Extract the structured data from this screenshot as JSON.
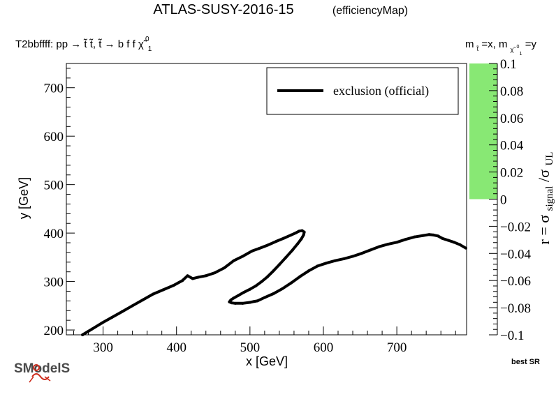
{
  "header": {
    "title": "ATLAS-SUSY-2016-15",
    "subtitle": "(efficiencyMap)",
    "process": "T2bbffff: pp  → t̃ t̃, t̃  → b f f  χ̃",
    "process_sup": "0",
    "process_sub": "1",
    "mass_label": "m",
    "mass_sub_1": "t̃",
    "mass_mid": "=x, m",
    "mass_sub_2": "χ̃",
    "mass_sub_2_sup": "0",
    "mass_sub_2_sub": "1",
    "mass_end": "=y"
  },
  "footer": {
    "best_sr": "best SR",
    "logo_text": "SModelS"
  },
  "colorbar": {
    "label_main": "r = σ",
    "label_sub1": "signal",
    "label_mid": "/σ",
    "label_sub2": "UL",
    "range": [
      -0.1,
      0.1
    ],
    "ticks": [
      "0.1",
      "0.08",
      "0.06",
      "0.04",
      "0.02",
      "0",
      "−0.02",
      "−0.04",
      "−0.06",
      "−0.08",
      "−0.1"
    ],
    "fill_color": "#88e874",
    "filled_range": [
      0,
      0.1
    ]
  },
  "chart_data": {
    "type": "line",
    "xlabel": "x [GeV]",
    "ylabel": "y [GeV]",
    "xlim": [
      250,
      795
    ],
    "ylim": [
      190,
      750
    ],
    "x_ticks": [
      300,
      400,
      500,
      600,
      700
    ],
    "y_ticks": [
      200,
      300,
      400,
      500,
      600,
      700
    ],
    "grid": false,
    "legend_position": "top-right",
    "line_color": "#000000",
    "series": [
      {
        "name": "exclusion (official)",
        "x": [
          272,
          285,
          298,
          312,
          326,
          340,
          354,
          368,
          382,
          396,
          408,
          415,
          422,
          430,
          440,
          452,
          465,
          478,
          490,
          503,
          512,
          524,
          536,
          547,
          556,
          562,
          567,
          571,
          574,
          573,
          570,
          565,
          558,
          549,
          540,
          532,
          524,
          516,
          508,
          500,
          492,
          484,
          478,
          474,
          472,
          475,
          480,
          490,
          500,
          506,
          510,
          520,
          532,
          544,
          556,
          568,
          580,
          592,
          604,
          616,
          628,
          640,
          652,
          664,
          676,
          688,
          700,
          712,
          724,
          736,
          744,
          750,
          756,
          762,
          770,
          778,
          786,
          794
        ],
        "y": [
          190,
          202,
          214,
          226,
          238,
          250,
          262,
          274,
          283,
          292,
          302,
          312,
          306,
          309,
          312,
          318,
          328,
          343,
          352,
          363,
          368,
          375,
          383,
          390,
          396,
          400,
          404,
          405,
          402,
          396,
          388,
          378,
          365,
          350,
          335,
          322,
          310,
          300,
          291,
          284,
          278,
          271,
          266,
          262,
          258,
          256,
          255,
          255,
          257,
          259,
          260,
          267,
          275,
          285,
          297,
          310,
          322,
          332,
          338,
          343,
          347,
          352,
          358,
          365,
          372,
          377,
          381,
          387,
          392,
          395,
          397,
          396,
          394,
          389,
          385,
          381,
          376,
          369
        ]
      }
    ]
  }
}
